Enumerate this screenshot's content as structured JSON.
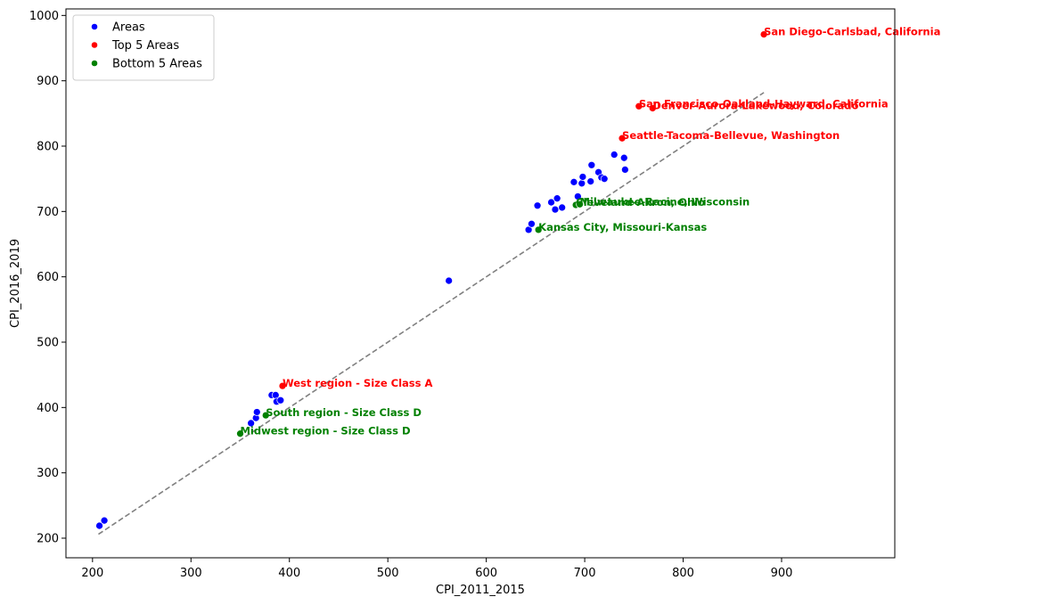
{
  "chart_data": {
    "type": "scatter",
    "xlabel": "CPI_2011_2015",
    "ylabel": "CPI_2016_2019",
    "xlim": [
      173,
      1015
    ],
    "ylim": [
      170,
      1010
    ],
    "xticks": [
      200,
      300,
      400,
      500,
      600,
      700,
      800,
      900
    ],
    "yticks": [
      200,
      300,
      400,
      500,
      600,
      700,
      800,
      900,
      1000
    ],
    "legend_position": "upper-left",
    "reference_line": {
      "style": "dashed",
      "color": "#808080",
      "x": [
        206,
        882
      ],
      "y": [
        206,
        882
      ]
    },
    "series": [
      {
        "name": "Areas",
        "color": "#0000ff",
        "points": [
          {
            "x": 207,
            "y": 219
          },
          {
            "x": 212,
            "y": 227
          },
          {
            "x": 361,
            "y": 376
          },
          {
            "x": 366,
            "y": 384
          },
          {
            "x": 367,
            "y": 393
          },
          {
            "x": 382,
            "y": 419
          },
          {
            "x": 386,
            "y": 419
          },
          {
            "x": 387,
            "y": 409
          },
          {
            "x": 391,
            "y": 411
          },
          {
            "x": 562,
            "y": 594
          },
          {
            "x": 643,
            "y": 672
          },
          {
            "x": 646,
            "y": 681
          },
          {
            "x": 652,
            "y": 709
          },
          {
            "x": 666,
            "y": 714
          },
          {
            "x": 670,
            "y": 703
          },
          {
            "x": 672,
            "y": 720
          },
          {
            "x": 677,
            "y": 706
          },
          {
            "x": 689,
            "y": 745
          },
          {
            "x": 693,
            "y": 723
          },
          {
            "x": 697,
            "y": 743
          },
          {
            "x": 698,
            "y": 753
          },
          {
            "x": 706,
            "y": 746
          },
          {
            "x": 707,
            "y": 771
          },
          {
            "x": 714,
            "y": 760
          },
          {
            "x": 717,
            "y": 752
          },
          {
            "x": 720,
            "y": 750
          },
          {
            "x": 730,
            "y": 787
          },
          {
            "x": 740,
            "y": 782
          },
          {
            "x": 741,
            "y": 764
          }
        ]
      },
      {
        "name": "Top 5 Areas",
        "color": "#ff0000",
        "points": [
          {
            "x": 882,
            "y": 971,
            "label": "San Diego-Carlsbad, California"
          },
          {
            "x": 755,
            "y": 861,
            "label": "San Francisco-Oakland-Hayward, California"
          },
          {
            "x": 769,
            "y": 858,
            "label": "Denver-Aurora-Lakewood, Colorado"
          },
          {
            "x": 738,
            "y": 812,
            "label": "Seattle-Tacoma-Bellevue, Washington"
          },
          {
            "x": 393,
            "y": 433,
            "label": "West region - Size Class A"
          }
        ]
      },
      {
        "name": "Bottom 5 Areas",
        "color": "#008000",
        "points": [
          {
            "x": 691,
            "y": 710,
            "label": "Cleveland-Akron, Ohio"
          },
          {
            "x": 695,
            "y": 711,
            "label": "Milwaukee-Racine, Wisconsin"
          },
          {
            "x": 653,
            "y": 672,
            "label": "Kansas City, Missouri-Kansas"
          },
          {
            "x": 376,
            "y": 388,
            "label": "South region - Size Class D"
          },
          {
            "x": 350,
            "y": 360,
            "label": "Midwest region - Size Class D"
          }
        ]
      }
    ]
  }
}
